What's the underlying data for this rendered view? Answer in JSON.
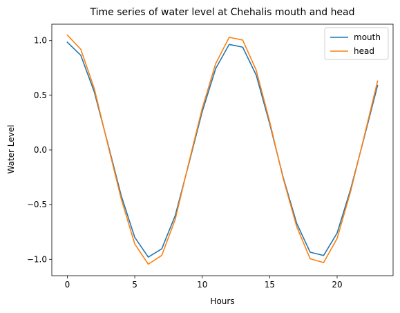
{
  "chart_data": {
    "type": "line",
    "title": "Time series of water level at Chehalis mouth and head",
    "xlabel": "Hours",
    "ylabel": "Water Level",
    "xlim": [
      -1.15,
      24.15
    ],
    "ylim": [
      -1.15,
      1.15
    ],
    "xticks": [
      0,
      5,
      10,
      15,
      20
    ],
    "xtick_labels": [
      "0",
      "5",
      "10",
      "15",
      "20"
    ],
    "yticks": [
      -1.0,
      -0.5,
      0.0,
      0.5,
      1.0
    ],
    "ytick_labels": [
      "−1.0",
      "−0.5",
      "0.0",
      "0.5",
      "1.0"
    ],
    "grid": false,
    "legend_position": "top-right",
    "x": [
      0,
      1,
      2,
      3,
      4,
      5,
      6,
      7,
      8,
      9,
      10,
      11,
      12,
      13,
      14,
      15,
      16,
      17,
      18,
      19,
      20,
      21,
      22,
      23
    ],
    "series": [
      {
        "name": "mouth",
        "color": "#1f77b4",
        "values": [
          0.985,
          0.865,
          0.53,
          0.06,
          -0.42,
          -0.8,
          -0.98,
          -0.905,
          -0.6,
          -0.13,
          0.35,
          0.745,
          0.965,
          0.94,
          0.685,
          0.24,
          -0.25,
          -0.67,
          -0.935,
          -0.965,
          -0.76,
          -0.36,
          0.11,
          0.59
        ]
      },
      {
        "name": "head",
        "color": "#ff7f0e",
        "values": [
          1.05,
          0.92,
          0.56,
          0.05,
          -0.45,
          -0.86,
          -1.045,
          -0.965,
          -0.635,
          -0.12,
          0.38,
          0.79,
          1.03,
          1.005,
          0.73,
          0.26,
          -0.26,
          -0.7,
          -0.995,
          -1.03,
          -0.81,
          -0.38,
          0.12,
          0.63
        ]
      }
    ]
  }
}
